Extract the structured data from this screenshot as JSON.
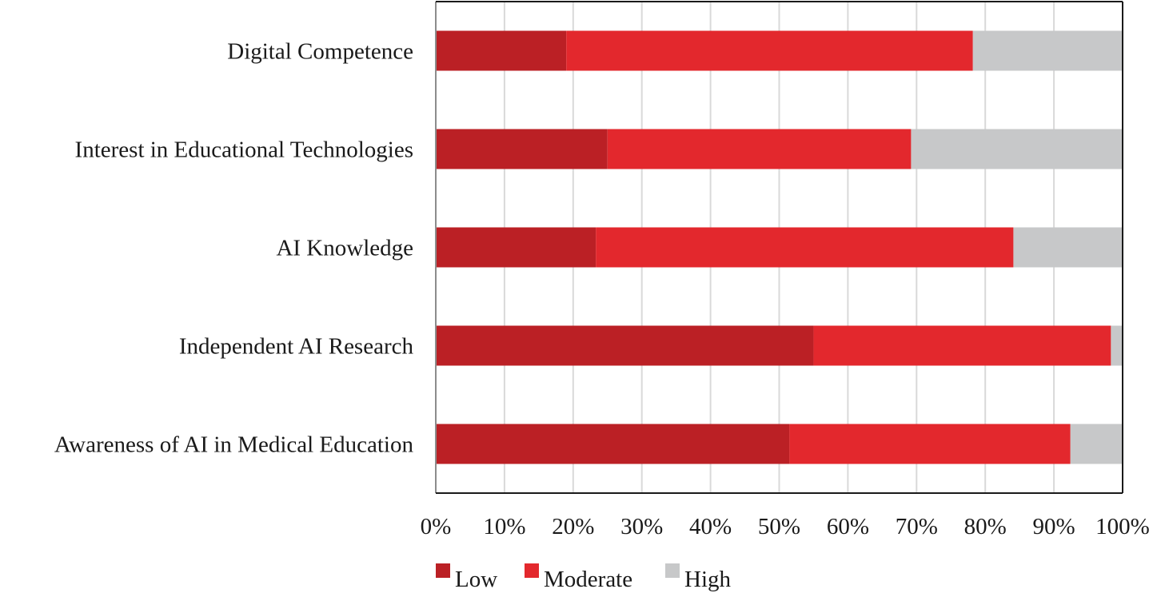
{
  "chart_data": {
    "type": "bar",
    "orientation": "horizontal",
    "stacked": "percent",
    "categories": [
      "Digital Competence",
      "Interest in Educational Technologies",
      "AI Knowledge",
      "Independent AI Research",
      "Awareness of AI in Medical Education"
    ],
    "series": [
      {
        "name": "Low",
        "color": "#bb2025",
        "values": [
          19,
          25,
          23.3,
          55,
          51.5
        ]
      },
      {
        "name": "Moderate",
        "color": "#e3282d",
        "values": [
          59.2,
          44.2,
          60.8,
          43.3,
          40.9
        ]
      },
      {
        "name": "High",
        "color": "#c7c8c9",
        "values": [
          21.8,
          30.8,
          15.9,
          1.7,
          7.6
        ]
      }
    ],
    "x_ticks": [
      "0%",
      "10%",
      "20%",
      "30%",
      "40%",
      "50%",
      "60%",
      "70%",
      "80%",
      "90%",
      "100%"
    ],
    "xlim": [
      0,
      100
    ],
    "grid": "vertical",
    "legend": "bottom"
  }
}
